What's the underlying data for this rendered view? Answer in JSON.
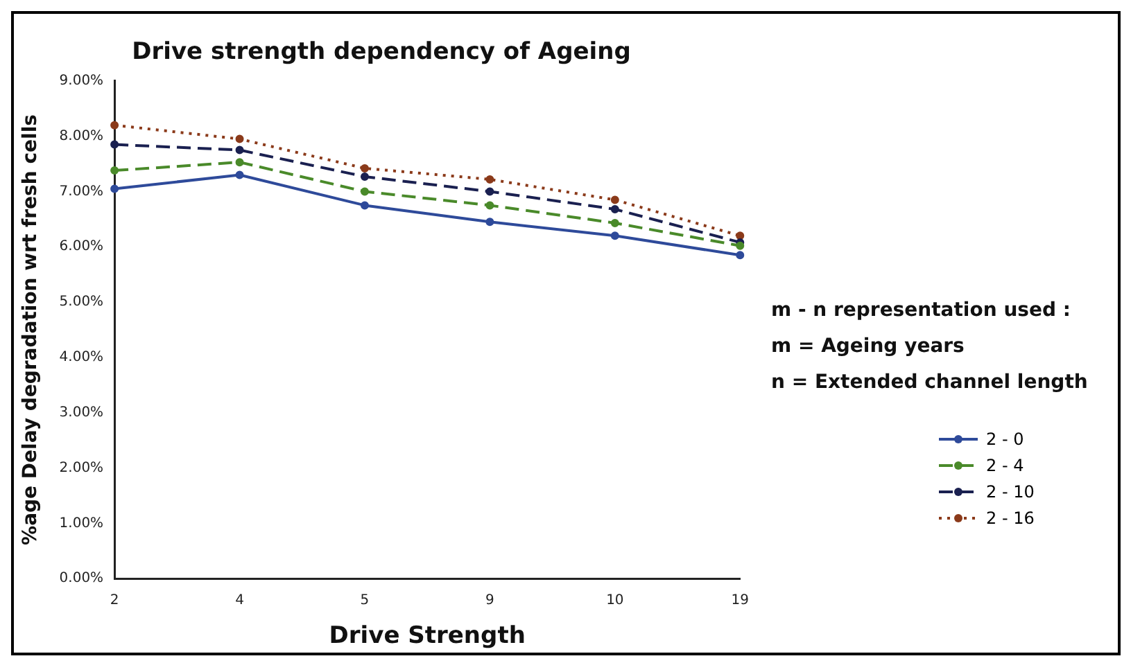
{
  "chart_data": {
    "type": "line",
    "title": "Drive strength dependency of Ageing",
    "xlabel": "Drive Strength",
    "ylabel": "%age Delay degradation wrt fresh cells",
    "categories": [
      "2",
      "4",
      "5",
      "9",
      "10",
      "19"
    ],
    "series": [
      {
        "name": "2 - 0",
        "color": "#2e4a9a",
        "line_style": "solid",
        "values": [
          7.05,
          7.3,
          6.75,
          6.45,
          6.2,
          5.85
        ]
      },
      {
        "name": "2 - 4",
        "color": "#4a8a2a",
        "line_style": "dashed",
        "values": [
          7.38,
          7.53,
          7.0,
          6.75,
          6.43,
          6.02
        ]
      },
      {
        "name": "2 - 10",
        "color": "#1a2050",
        "line_style": "dashed",
        "values": [
          7.85,
          7.75,
          7.27,
          7.0,
          6.68,
          6.08
        ]
      },
      {
        "name": "2 - 16",
        "color": "#8b3a1a",
        "line_style": "dotted",
        "values": [
          8.2,
          7.95,
          7.42,
          7.22,
          6.85,
          6.2
        ]
      }
    ],
    "ylim": [
      0,
      9
    ],
    "yticks": [
      {
        "value": 0,
        "label": "0.00%"
      },
      {
        "value": 1,
        "label": "1.00%"
      },
      {
        "value": 2,
        "label": "2.00%"
      },
      {
        "value": 3,
        "label": "3.00%"
      },
      {
        "value": 4,
        "label": "4.00%"
      },
      {
        "value": 5,
        "label": "5.00%"
      },
      {
        "value": 6,
        "label": "6.00%"
      },
      {
        "value": 7,
        "label": "7.00%"
      },
      {
        "value": 8,
        "label": "8.00%"
      },
      {
        "value": 9,
        "label": "9.00%"
      }
    ],
    "annotations": [
      "m - n representation used :",
      "m = Ageing years",
      "n = Extended channel length"
    ],
    "marker": "circle",
    "grid": false,
    "legend": "right"
  }
}
